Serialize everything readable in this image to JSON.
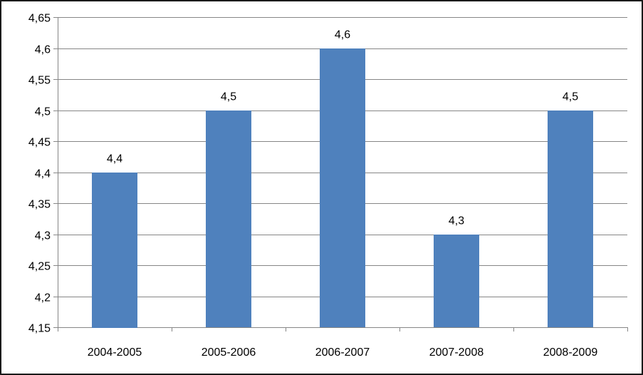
{
  "chart_data": {
    "type": "bar",
    "categories": [
      "2004-2005",
      "2005-2006",
      "2006-2007",
      "2007-2008",
      "2008-2009"
    ],
    "values": [
      4.4,
      4.5,
      4.6,
      4.3,
      4.5
    ],
    "data_labels": [
      "4,4",
      "4,5",
      "4,6",
      "4,3",
      "4,5"
    ],
    "ylim": [
      4.15,
      4.65
    ],
    "y_ticks": [
      4.15,
      4.2,
      4.25,
      4.3,
      4.35,
      4.4,
      4.45,
      4.5,
      4.55,
      4.6,
      4.65
    ],
    "y_tick_labels": [
      "4,15",
      "4,2",
      "4,25",
      "4,3",
      "4,35",
      "4,4",
      "4,45",
      "4,5",
      "4,55",
      "4,6",
      "4,65"
    ],
    "grid": true,
    "legend": "none",
    "bar_color": "#4F81BD",
    "grid_color": "#868686"
  }
}
